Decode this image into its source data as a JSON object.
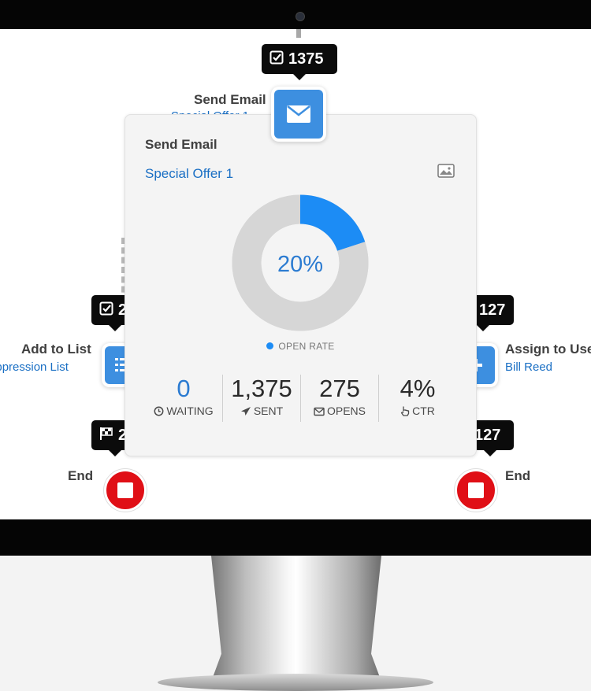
{
  "journey": {
    "top_badge": {
      "count": "1375",
      "icon": "checkbox-icon"
    },
    "send_email_node": {
      "title": "Send Email",
      "subtitle": "Special Offer 1",
      "icon": "envelope-icon"
    },
    "left_badge": {
      "count": "2",
      "icon": "checkbox-icon"
    },
    "right_badge": {
      "count": "127",
      "icon": "checkbox-icon"
    },
    "add_to_list_node": {
      "title": "Add to List",
      "subtitle": "Suppression List",
      "icon": "list-icon"
    },
    "assign_user_node": {
      "title": "Assign to User",
      "subtitle": "Bill Reed",
      "icon": "assign-icon"
    },
    "left_end_badge": {
      "count": "2",
      "icon": "flag-icon"
    },
    "right_end_badge": {
      "count": "127"
    },
    "left_end_label": "End",
    "right_end_label": "End"
  },
  "popup": {
    "title": "Send Email",
    "subtitle": "Special Offer 1",
    "chart_data": {
      "type": "pie",
      "donut": true,
      "center_label": "20%",
      "slices": [
        {
          "label": "OPEN RATE",
          "value": 20,
          "color": "#1c8cf5"
        },
        {
          "label": "",
          "value": 80,
          "color": "#d6d6d6"
        }
      ],
      "legend": "bottom"
    },
    "legend_label": "OPEN RATE",
    "stats": [
      {
        "value": "0",
        "label": "WAITING",
        "icon": "clock-icon"
      },
      {
        "value": "1,375",
        "label": "SENT",
        "icon": "paper-plane-icon"
      },
      {
        "value": "275",
        "label": "OPENS",
        "icon": "envelope-icon"
      },
      {
        "value": "4%",
        "label": "CTR",
        "icon": "pointer-hand-icon"
      }
    ]
  },
  "colors": {
    "accent": "#1c8cf5",
    "node_blue": "#3d8fe0",
    "end_red": "#e00f16",
    "link": "#1a6fc4"
  }
}
